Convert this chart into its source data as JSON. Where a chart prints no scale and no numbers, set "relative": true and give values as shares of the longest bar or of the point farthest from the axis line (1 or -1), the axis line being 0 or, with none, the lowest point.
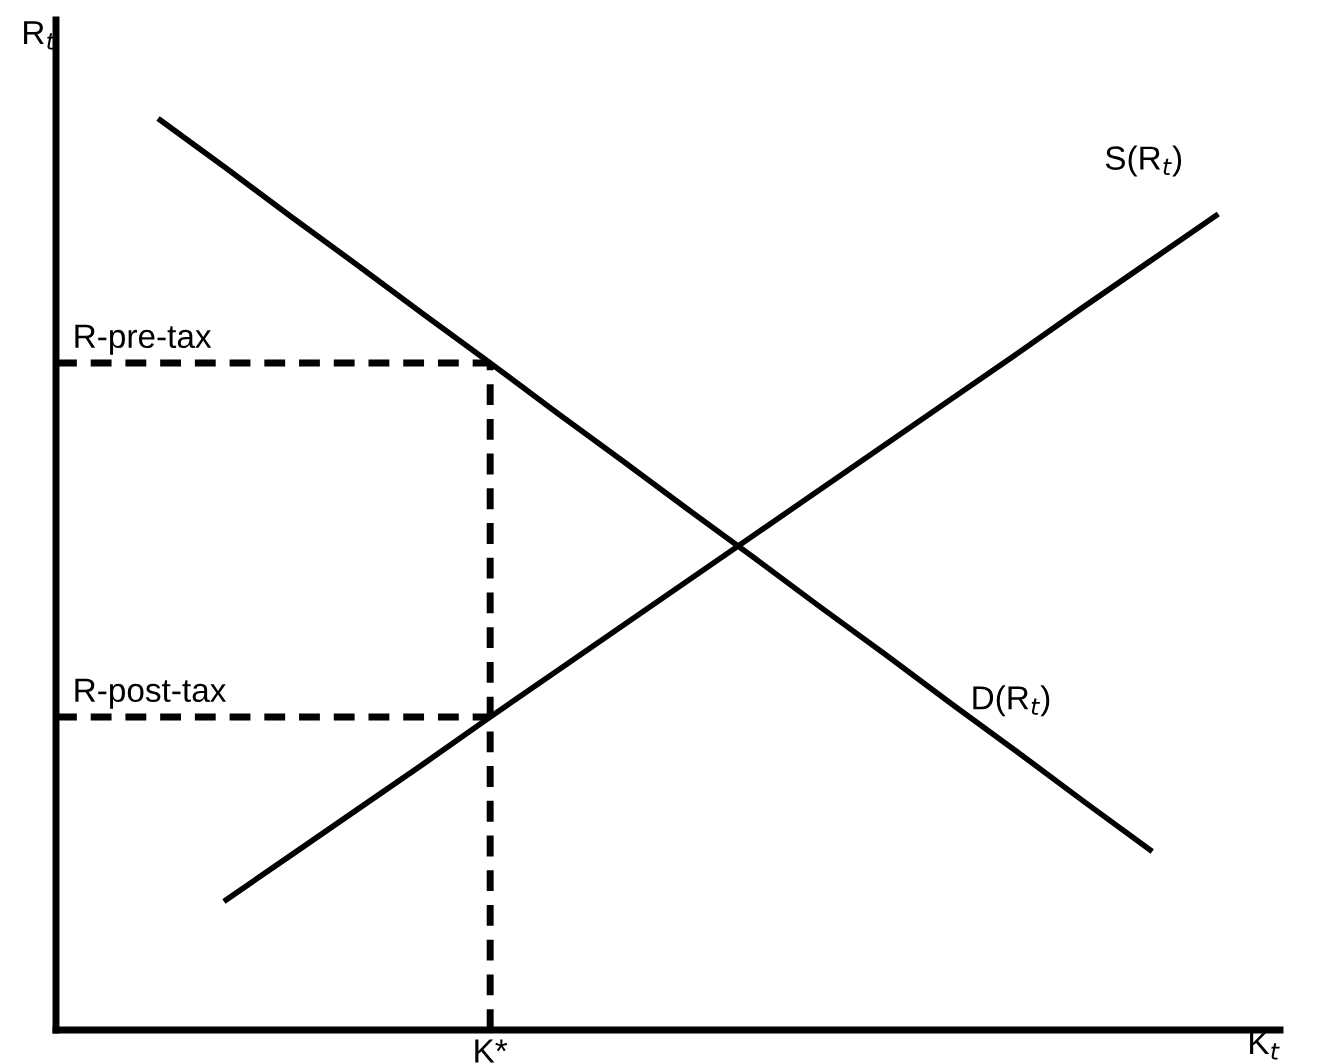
{
  "chart_data": {
    "type": "line",
    "relative": true,
    "xlabel": "K$_{t}$",
    "ylabel": "R$_{t}$",
    "tick_labels": false,
    "categories": [
      null,
      null,
      null,
      null,
      null,
      null,
      null,
      null,
      null,
      null,
      null,
      null,
      null,
      null,
      null,
      null,
      null
    ],
    "series": [
      {
        "name": "D(R$_{t}$)",
        "color": "#000000",
        "values": [
          1,
          0.947,
          0.893,
          0.84,
          0.786,
          0.733,
          0.679,
          0.626,
          0.572,
          0.519,
          0.465,
          0.412,
          0.358,
          0.305,
          0.251,
          0.198,
          null
        ]
      },
      {
        "name": "S(R$_{t}$)",
        "color": "#000000",
        "values": [
          null,
          0.143,
          0.193,
          0.243,
          0.293,
          0.344,
          0.394,
          0.444,
          0.494,
          0.544,
          0.594,
          0.644,
          0.694,
          0.744,
          0.795,
          0.845,
          0.895
        ]
      }
    ],
    "ref_lines": [
      {
        "axis": "y",
        "value": 0.733,
        "label": "R-pre-tax",
        "color": "#000000",
        "line_style": "dashed"
      },
      {
        "axis": "y",
        "value": 0.344,
        "label": "R-post-tax",
        "color": "#000000",
        "line_style": "dashed"
      }
    ],
    "annotations": [
      "K*"
    ]
  }
}
